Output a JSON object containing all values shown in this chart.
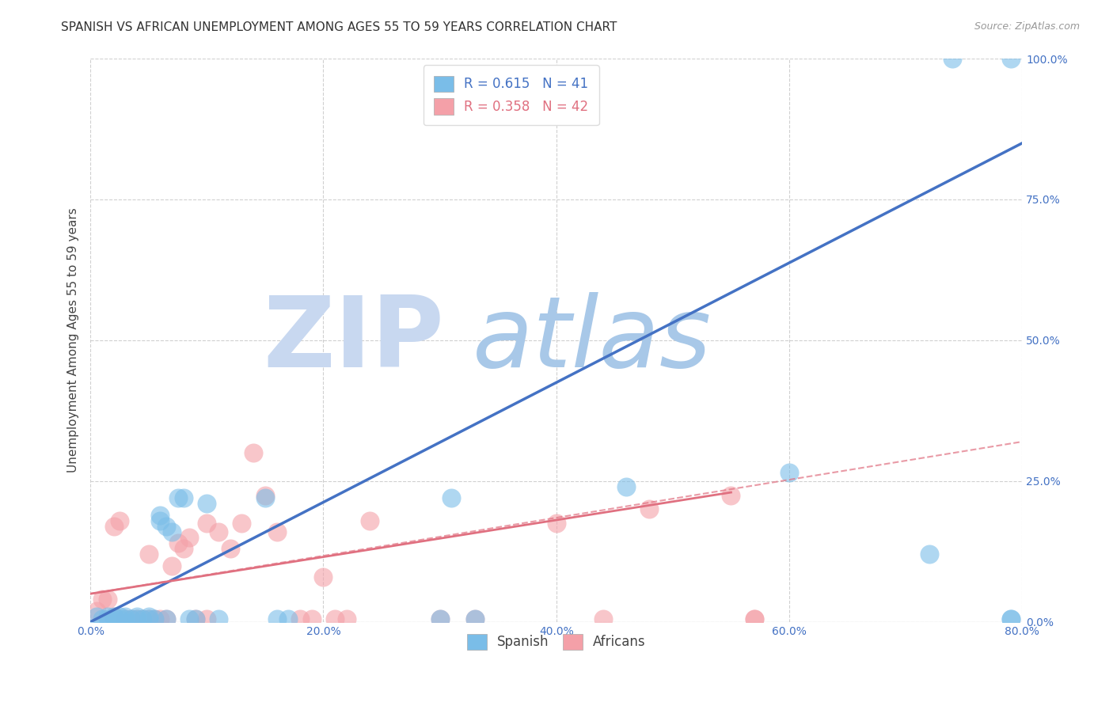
{
  "title": "SPANISH VS AFRICAN UNEMPLOYMENT AMONG AGES 55 TO 59 YEARS CORRELATION CHART",
  "source": "Source: ZipAtlas.com",
  "ylabel": "Unemployment Among Ages 55 to 59 years",
  "xlim": [
    0.0,
    0.8
  ],
  "ylim": [
    0.0,
    1.0
  ],
  "xticks": [
    0.0,
    0.2,
    0.4,
    0.6,
    0.8
  ],
  "yticks": [
    0.0,
    0.25,
    0.5,
    0.75,
    1.0
  ],
  "xtick_labels": [
    "0.0%",
    "20.0%",
    "40.0%",
    "60.0%",
    "80.0%"
  ],
  "ytick_labels": [
    "0.0%",
    "25.0%",
    "50.0%",
    "75.0%",
    "100.0%"
  ],
  "spanish_color": "#7abde8",
  "african_color": "#f4a0a8",
  "trend_spanish_color": "#4472c4",
  "trend_african_color": "#e07080",
  "tick_color": "#4472c4",
  "R_spanish": 0.615,
  "N_spanish": 41,
  "R_african": 0.358,
  "N_african": 42,
  "spanish_x": [
    0.005,
    0.01,
    0.015,
    0.015,
    0.02,
    0.02,
    0.025,
    0.025,
    0.03,
    0.03,
    0.035,
    0.04,
    0.04,
    0.045,
    0.05,
    0.05,
    0.055,
    0.06,
    0.06,
    0.065,
    0.065,
    0.07,
    0.075,
    0.08,
    0.085,
    0.09,
    0.1,
    0.11,
    0.15,
    0.16,
    0.17,
    0.3,
    0.31,
    0.33,
    0.46,
    0.6,
    0.72,
    0.74,
    0.79,
    0.79,
    0.79
  ],
  "spanish_y": [
    0.01,
    0.005,
    0.005,
    0.01,
    0.005,
    0.01,
    0.005,
    0.01,
    0.005,
    0.01,
    0.005,
    0.005,
    0.01,
    0.005,
    0.005,
    0.01,
    0.005,
    0.18,
    0.19,
    0.17,
    0.005,
    0.16,
    0.22,
    0.22,
    0.005,
    0.005,
    0.21,
    0.005,
    0.22,
    0.005,
    0.005,
    0.005,
    0.22,
    0.005,
    0.24,
    0.265,
    0.12,
    1.0,
    1.0,
    0.005,
    0.005
  ],
  "african_x": [
    0.005,
    0.01,
    0.015,
    0.02,
    0.02,
    0.025,
    0.03,
    0.035,
    0.04,
    0.045,
    0.05,
    0.05,
    0.055,
    0.06,
    0.065,
    0.07,
    0.075,
    0.08,
    0.085,
    0.09,
    0.1,
    0.1,
    0.11,
    0.12,
    0.13,
    0.14,
    0.15,
    0.16,
    0.18,
    0.19,
    0.2,
    0.21,
    0.22,
    0.24,
    0.3,
    0.33,
    0.4,
    0.44,
    0.48,
    0.55,
    0.57,
    0.57
  ],
  "african_y": [
    0.02,
    0.04,
    0.04,
    0.01,
    0.17,
    0.18,
    0.005,
    0.005,
    0.005,
    0.005,
    0.005,
    0.12,
    0.005,
    0.005,
    0.005,
    0.1,
    0.14,
    0.13,
    0.15,
    0.005,
    0.005,
    0.175,
    0.16,
    0.13,
    0.175,
    0.3,
    0.225,
    0.16,
    0.005,
    0.005,
    0.08,
    0.005,
    0.005,
    0.18,
    0.005,
    0.005,
    0.175,
    0.005,
    0.2,
    0.225,
    0.005,
    0.005
  ],
  "trend_spanish_x0": 0.0,
  "trend_spanish_y0": 0.0,
  "trend_spanish_x1": 0.8,
  "trend_spanish_y1": 0.85,
  "trend_african_solid_x0": 0.0,
  "trend_african_solid_y0": 0.05,
  "trend_african_solid_x1": 0.55,
  "trend_african_solid_y1": 0.23,
  "trend_african_dash_x0": 0.0,
  "trend_african_dash_y0": 0.05,
  "trend_african_dash_x1": 0.8,
  "trend_african_dash_y1": 0.32,
  "watermark_zip": "ZIP",
  "watermark_atlas": "atlas",
  "watermark_color_zip": "#c8d8f0",
  "watermark_color_atlas": "#a8c8e8",
  "bg_color": "#ffffff",
  "grid_color": "#d0d0d0",
  "title_fontsize": 11,
  "axis_label_fontsize": 11,
  "tick_fontsize": 10,
  "legend_fontsize": 12,
  "source_fontsize": 9
}
